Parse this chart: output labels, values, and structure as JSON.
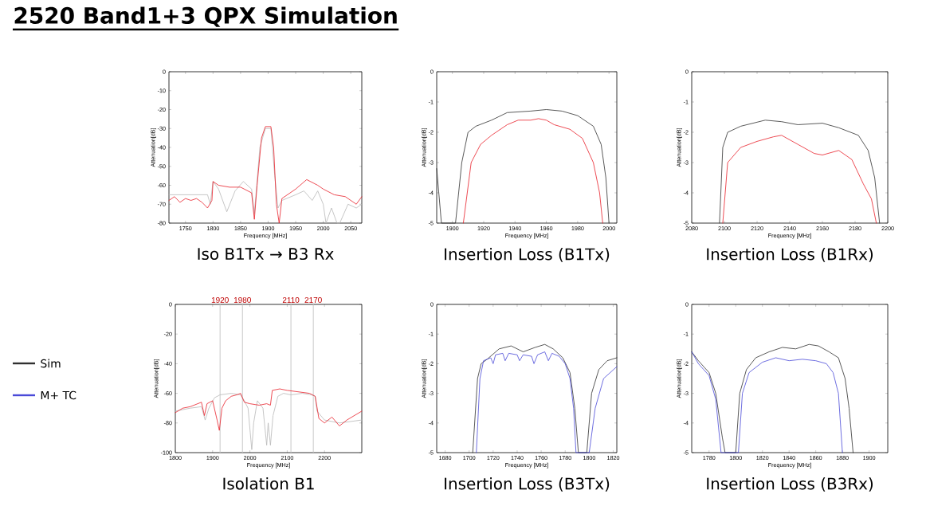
{
  "chart_data": [
    {
      "type": "line",
      "title": "Iso B1Tx → B3 Rx",
      "xlabel": "Frequency [MHz]",
      "ylabel": "Attenuation[dB]",
      "annotations": [
        "2520 Band1+3 QPX Simulation"
      ],
      "xlim": [
        1720,
        2070
      ],
      "xticks": [
        1750,
        1800,
        1850,
        1900,
        1950,
        2000,
        2050
      ],
      "ylim": [
        -80,
        0
      ],
      "yticks": [
        0,
        -10,
        -20,
        -30,
        -40,
        -50,
        -60,
        -70,
        -80
      ],
      "series": [
        {
          "color": "#b8b8b8",
          "x": [
            1720,
            1790,
            1795,
            1800,
            1810,
            1825,
            1840,
            1855,
            1870,
            1875,
            1885,
            1895,
            1905,
            1912,
            1918,
            1925,
            1950,
            1965,
            1980,
            1990,
            2000,
            2005,
            2015,
            2025,
            2030,
            2045,
            2060,
            2070
          ],
          "values": [
            -65,
            -65,
            -70,
            -58,
            -62,
            -74,
            -63,
            -58,
            -62,
            -75,
            -40,
            -30,
            -30,
            -55,
            -72,
            -68,
            -65,
            -63,
            -68,
            -63,
            -70,
            -80,
            -72,
            -80,
            -80,
            -70,
            -72,
            -70
          ]
        },
        {
          "color": "#e8202a",
          "x": [
            1720,
            1730,
            1740,
            1750,
            1760,
            1770,
            1780,
            1790,
            1798,
            1800,
            1810,
            1830,
            1850,
            1870,
            1875,
            1880,
            1888,
            1895,
            1905,
            1910,
            1915,
            1920,
            1925,
            1950,
            1970,
            1990,
            2000,
            2020,
            2040,
            2060,
            2070
          ],
          "values": [
            -68,
            -66,
            -69,
            -67,
            -68,
            -67,
            -69,
            -72,
            -68,
            -58,
            -60,
            -61,
            -61,
            -64,
            -78,
            -60,
            -35,
            -29,
            -29,
            -40,
            -70,
            -80,
            -67,
            -62,
            -57,
            -60,
            -62,
            -65,
            -66,
            -70,
            -66
          ]
        }
      ]
    },
    {
      "type": "line",
      "title": "Insertion Loss (B1Tx)",
      "xlabel": "Frequency [MHz]",
      "ylabel": "Attenuation[dB]",
      "xlim": [
        1890,
        2005
      ],
      "xticks": [
        1900,
        1920,
        1940,
        1960,
        1980,
        2000
      ],
      "ylim": [
        -5,
        0
      ],
      "yticks": [
        0,
        -1,
        -2,
        -3,
        -4,
        -5
      ],
      "series": [
        {
          "color": "#303030",
          "x": [
            1890,
            1893,
            1902,
            1906,
            1910,
            1915,
            1925,
            1935,
            1950,
            1960,
            1970,
            1980,
            1990,
            1995,
            1998,
            2000
          ],
          "values": [
            -3.2,
            -5,
            -5,
            -3,
            -2,
            -1.8,
            -1.6,
            -1.35,
            -1.3,
            -1.25,
            -1.3,
            -1.45,
            -1.8,
            -2.4,
            -3.5,
            -5
          ]
        },
        {
          "color": "#e8202a",
          "x": [
            1907,
            1912,
            1918,
            1925,
            1935,
            1942,
            1950,
            1955,
            1960,
            1965,
            1975,
            1983,
            1990,
            1994,
            1996
          ],
          "values": [
            -5,
            -3,
            -2.4,
            -2.1,
            -1.75,
            -1.6,
            -1.6,
            -1.55,
            -1.6,
            -1.75,
            -1.9,
            -2.2,
            -3,
            -4,
            -5
          ]
        }
      ]
    },
    {
      "type": "line",
      "title": "Insertion Loss (B1Rx)",
      "xlabel": "Frequency [MHz]",
      "ylabel": "Attenuation[dB]",
      "xlim": [
        2080,
        2200
      ],
      "xticks": [
        2080,
        2100,
        2120,
        2140,
        2160,
        2180,
        2200
      ],
      "ylim": [
        -5,
        0
      ],
      "yticks": [
        0,
        -1,
        -2,
        -3,
        -4,
        -5
      ],
      "series": [
        {
          "color": "#303030",
          "x": [
            2097,
            2099,
            2102,
            2110,
            2125,
            2135,
            2145,
            2160,
            2170,
            2182,
            2188,
            2192,
            2195
          ],
          "values": [
            -5,
            -2.5,
            -2,
            -1.8,
            -1.6,
            -1.65,
            -1.75,
            -1.7,
            -1.85,
            -2.1,
            -2.6,
            -3.5,
            -5
          ]
        },
        {
          "color": "#e8202a",
          "x": [
            2099,
            2102,
            2110,
            2120,
            2130,
            2135,
            2145,
            2155,
            2160,
            2170,
            2178,
            2185,
            2190,
            2193
          ],
          "values": [
            -5,
            -3,
            -2.5,
            -2.3,
            -2.15,
            -2.1,
            -2.4,
            -2.7,
            -2.75,
            -2.6,
            -2.9,
            -3.7,
            -4.2,
            -5
          ]
        }
      ]
    },
    {
      "type": "line",
      "title": "Isolation B1",
      "xlabel": "Frequency [MHz]",
      "ylabel": "Attenuation[dB]",
      "xlim": [
        1800,
        2300
      ],
      "xticks": [
        1800,
        1900,
        2000,
        2100,
        2200
      ],
      "ylim": [
        -100,
        0
      ],
      "yticks": [
        0,
        -20,
        -40,
        -60,
        -80,
        -100
      ],
      "ref_lines": [
        {
          "axis": "x",
          "value": 1920,
          "label": "1920",
          "color": "#c8c8c8"
        },
        {
          "axis": "x",
          "value": 1980,
          "label": "1980",
          "color": "#c8c8c8"
        },
        {
          "axis": "x",
          "value": 2110,
          "label": "2110",
          "color": "#c8c8c8"
        },
        {
          "axis": "x",
          "value": 2170,
          "label": "2170",
          "color": "#c8c8c8"
        }
      ],
      "series": [
        {
          "color": "#b8b8b8",
          "x": [
            1800,
            1840,
            1870,
            1880,
            1890,
            1905,
            1920,
            1950,
            1975,
            1985,
            1995,
            2005,
            2010,
            2020,
            2035,
            2045,
            2049,
            2055,
            2062,
            2075,
            2090,
            2110,
            2140,
            2165,
            2175,
            2180,
            2200,
            2240,
            2300
          ],
          "values": [
            -72,
            -70,
            -69,
            -78,
            -70,
            -63,
            -61,
            -60,
            -61,
            -65,
            -70,
            -98,
            -80,
            -65,
            -70,
            -95,
            -80,
            -95,
            -75,
            -62,
            -60,
            -61,
            -60,
            -61,
            -62,
            -72,
            -78,
            -80,
            -78
          ]
        },
        {
          "color": "#e8202a",
          "x": [
            1800,
            1820,
            1840,
            1860,
            1870,
            1878,
            1885,
            1900,
            1912,
            1918,
            1925,
            1935,
            1950,
            1965,
            1975,
            1985,
            2000,
            2025,
            2045,
            2055,
            2060,
            2080,
            2100,
            2130,
            2160,
            2175,
            2185,
            2200,
            2220,
            2240,
            2260,
            2280,
            2300
          ],
          "values": [
            -73,
            -70,
            -69,
            -67,
            -66,
            -75,
            -67,
            -65,
            -78,
            -85,
            -70,
            -65,
            -62,
            -61,
            -60,
            -66,
            -67,
            -68,
            -67,
            -68,
            -58,
            -57,
            -58,
            -59,
            -60,
            -62,
            -77,
            -80,
            -76,
            -82,
            -78,
            -75,
            -72
          ]
        }
      ]
    },
    {
      "type": "line",
      "title": "Insertion Loss (B3Tx)",
      "xlabel": "Frequency [MHz]",
      "ylabel": "Attenuation[dB]",
      "legend": "left",
      "xlim": [
        1673,
        1823
      ],
      "xticks": [
        1680,
        1700,
        1720,
        1740,
        1760,
        1780,
        1800,
        1820
      ],
      "ylim": [
        -5,
        0
      ],
      "yticks": [
        0,
        -1,
        -2,
        -3,
        -4,
        -5
      ],
      "series": [
        {
          "name": "Sim",
          "color": "#303030",
          "x": [
            1703,
            1707,
            1710,
            1715,
            1725,
            1735,
            1745,
            1755,
            1763,
            1770,
            1778,
            1784,
            1788,
            1791,
            1798,
            1802,
            1808,
            1815,
            1823
          ],
          "values": [
            -5,
            -2.5,
            -2,
            -1.85,
            -1.5,
            -1.4,
            -1.6,
            -1.45,
            -1.35,
            -1.5,
            -1.8,
            -2.3,
            -3.5,
            -5,
            -5,
            -3,
            -2.2,
            -1.9,
            -1.8
          ]
        },
        {
          "name": "M+ TC",
          "color": "#4a4ad8",
          "x": [
            1706,
            1709,
            1712,
            1718,
            1720,
            1722,
            1728,
            1730,
            1733,
            1740,
            1742,
            1745,
            1752,
            1754,
            1757,
            1763,
            1766,
            1769,
            1775,
            1780,
            1784,
            1787,
            1789,
            1800,
            1805,
            1812,
            1823
          ],
          "values": [
            -5,
            -2.5,
            -1.9,
            -1.8,
            -2,
            -1.7,
            -1.65,
            -1.9,
            -1.65,
            -1.7,
            -1.9,
            -1.7,
            -1.75,
            -2,
            -1.7,
            -1.6,
            -1.9,
            -1.65,
            -1.75,
            -2,
            -2.5,
            -3.5,
            -5,
            -5,
            -3.5,
            -2.5,
            -2.1
          ]
        }
      ]
    },
    {
      "type": "line",
      "title": "Insertion Loss (B3Rx)",
      "xlabel": "Frequency [MHz]",
      "ylabel": "Attenuation[dB]",
      "xlim": [
        1767,
        1914
      ],
      "xticks": [
        1780,
        1800,
        1820,
        1840,
        1860,
        1880,
        1900
      ],
      "ylim": [
        -5,
        0
      ],
      "yticks": [
        0,
        -1,
        -2,
        -3,
        -4,
        -5
      ],
      "series": [
        {
          "color": "#303030",
          "x": [
            1767,
            1772,
            1776,
            1780,
            1785,
            1790,
            1792,
            1800,
            1803,
            1808,
            1815,
            1825,
            1835,
            1845,
            1855,
            1862,
            1870,
            1877,
            1882,
            1885,
            1888
          ],
          "values": [
            -1.6,
            -1.9,
            -2.1,
            -2.3,
            -3,
            -4.5,
            -5,
            -5,
            -3,
            -2.2,
            -1.8,
            -1.6,
            -1.45,
            -1.5,
            -1.35,
            -1.4,
            -1.6,
            -1.8,
            -2.5,
            -3.5,
            -5
          ]
        },
        {
          "color": "#4a4ad8",
          "x": [
            1767,
            1772,
            1776,
            1780,
            1785,
            1789,
            1802,
            1805,
            1810,
            1820,
            1830,
            1840,
            1850,
            1860,
            1868,
            1873,
            1877,
            1880
          ],
          "values": [
            -1.6,
            -2,
            -2.2,
            -2.4,
            -3.2,
            -5,
            -5,
            -3,
            -2.3,
            -1.95,
            -1.8,
            -1.9,
            -1.85,
            -1.9,
            -2,
            -2.3,
            -3,
            -5
          ]
        }
      ]
    }
  ]
}
